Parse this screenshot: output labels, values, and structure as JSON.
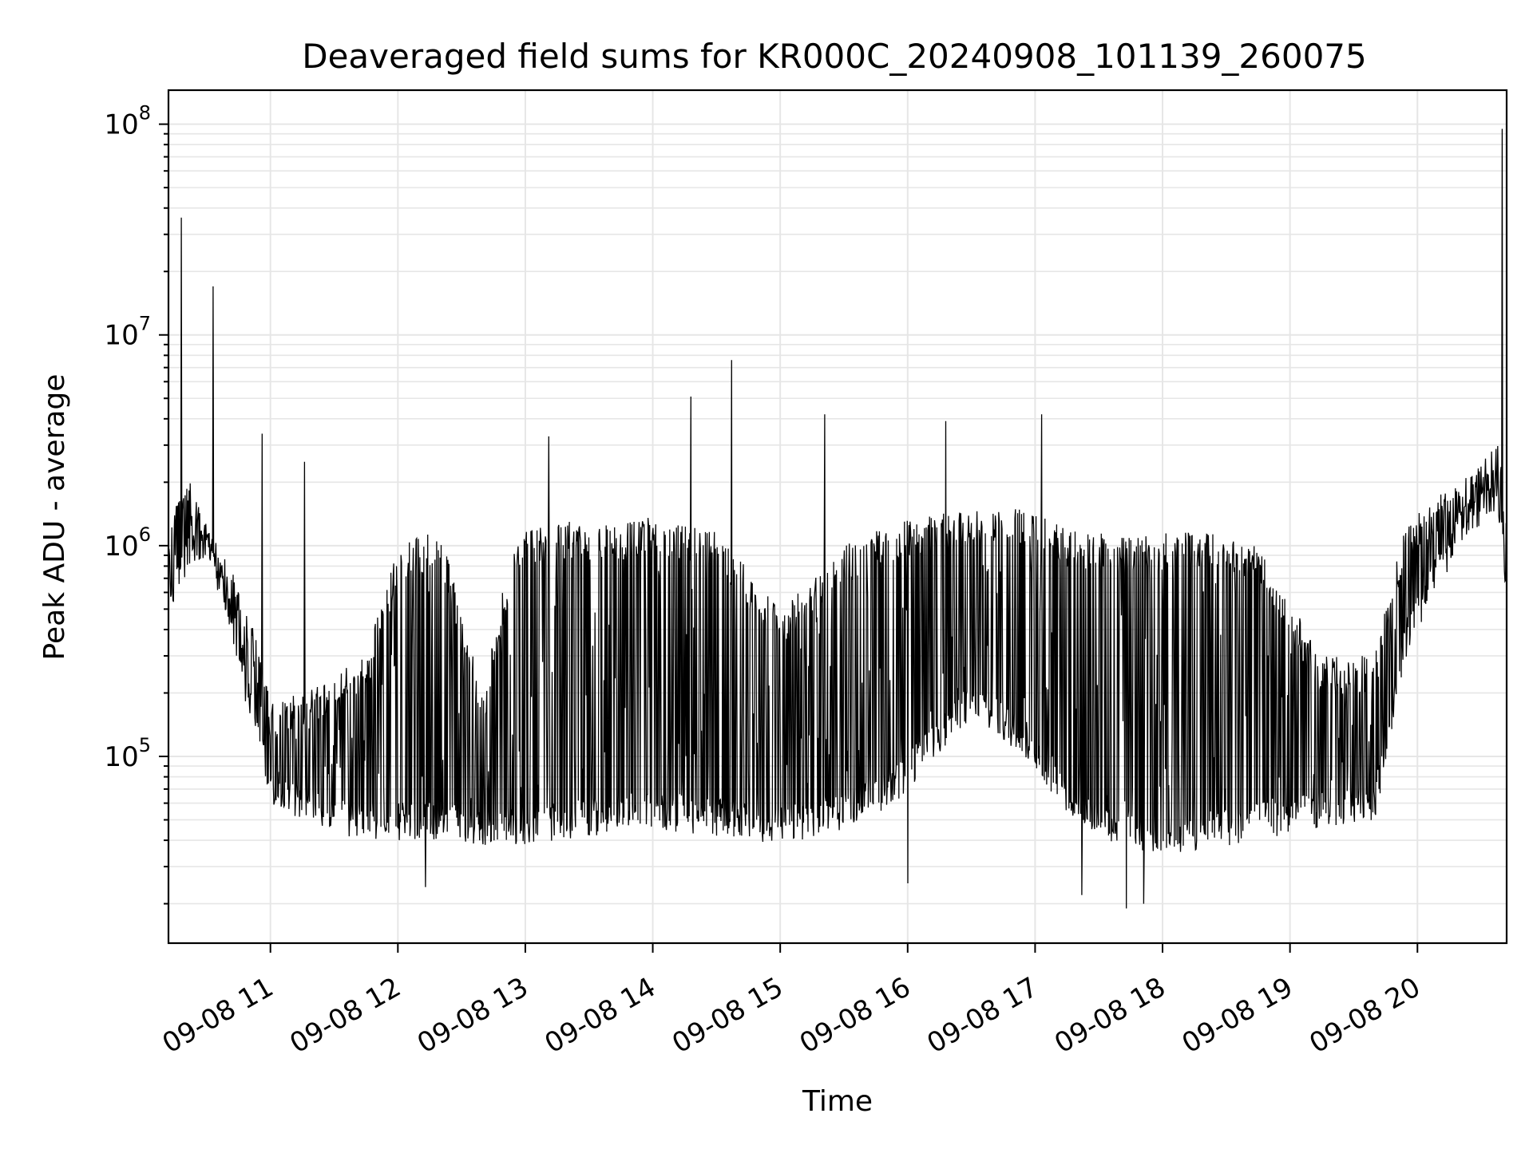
{
  "chart_data": {
    "type": "line",
    "title": "Deaveraged field sums for KR000C_20240908_101139_260075",
    "xlabel": "Time",
    "ylabel": "Peak ADU - average",
    "yscale": "log",
    "ylim": [
      13000,
      145000000
    ],
    "xlim": [
      "2024-09-08 10:12",
      "2024-09-08 20:42"
    ],
    "grid": true,
    "line_color": "#000000",
    "x_ticks": [
      {
        "value": "2024-09-08 11:00",
        "label": "09-08 11"
      },
      {
        "value": "2024-09-08 12:00",
        "label": "09-08 12"
      },
      {
        "value": "2024-09-08 13:00",
        "label": "09-08 13"
      },
      {
        "value": "2024-09-08 14:00",
        "label": "09-08 14"
      },
      {
        "value": "2024-09-08 15:00",
        "label": "09-08 15"
      },
      {
        "value": "2024-09-08 16:00",
        "label": "09-08 16"
      },
      {
        "value": "2024-09-08 17:00",
        "label": "09-08 17"
      },
      {
        "value": "2024-09-08 18:00",
        "label": "09-08 18"
      },
      {
        "value": "2024-09-08 19:00",
        "label": "09-08 19"
      },
      {
        "value": "2024-09-08 20:00",
        "label": "09-08 20"
      }
    ],
    "y_ticks": [
      {
        "value": 100000,
        "base": "10",
        "exp": "5"
      },
      {
        "value": 1000000,
        "base": "10",
        "exp": "6"
      },
      {
        "value": 10000000,
        "base": "10",
        "exp": "7"
      },
      {
        "value": 100000000,
        "base": "10",
        "exp": "8"
      }
    ],
    "series": [
      {
        "values": [
          {
            "t": "2024-09-08 10:12",
            "floor": 450000,
            "ceil": 1100000
          },
          {
            "t": "2024-09-08 10:20",
            "floor": 700000,
            "ceil": 2500000
          },
          {
            "t": "2024-09-08 10:30",
            "floor": 850000,
            "ceil": 1300000
          },
          {
            "t": "2024-09-08 10:40",
            "floor": 450000,
            "ceil": 900000
          },
          {
            "t": "2024-09-08 10:50",
            "floor": 150000,
            "ceil": 500000
          },
          {
            "t": "2024-09-08 11:00",
            "floor": 60000,
            "ceil": 180000
          },
          {
            "t": "2024-09-08 11:15",
            "floor": 50000,
            "ceil": 200000
          },
          {
            "t": "2024-09-08 11:30",
            "floor": 42000,
            "ceil": 250000
          },
          {
            "t": "2024-09-08 11:45",
            "floor": 38000,
            "ceil": 300000
          },
          {
            "t": "2024-09-08 12:00",
            "floor": 40000,
            "ceil": 1000000
          },
          {
            "t": "2024-09-08 12:20",
            "floor": 40000,
            "ceil": 1200000
          },
          {
            "t": "2024-09-08 12:40",
            "floor": 38000,
            "ceil": 200000
          },
          {
            "t": "2024-09-08 12:55",
            "floor": 38000,
            "ceil": 1200000
          },
          {
            "t": "2024-09-08 13:20",
            "floor": 40000,
            "ceil": 1300000
          },
          {
            "t": "2024-09-08 13:50",
            "floor": 45000,
            "ceil": 1300000
          },
          {
            "t": "2024-09-08 14:00",
            "floor": 45000,
            "ceil": 1400000
          },
          {
            "t": "2024-09-08 14:30",
            "floor": 42000,
            "ceil": 1200000
          },
          {
            "t": "2024-09-08 15:00",
            "floor": 38000,
            "ceil": 500000
          },
          {
            "t": "2024-09-08 15:30",
            "floor": 45000,
            "ceil": 1000000
          },
          {
            "t": "2024-09-08 15:55",
            "floor": 60000,
            "ceil": 1300000
          },
          {
            "t": "2024-09-08 16:30",
            "floor": 150000,
            "ceil": 1500000
          },
          {
            "t": "2024-09-08 16:55",
            "floor": 100000,
            "ceil": 1500000
          },
          {
            "t": "2024-09-08 17:15",
            "floor": 50000,
            "ceil": 1200000
          },
          {
            "t": "2024-09-08 17:45",
            "floor": 35000,
            "ceil": 1100000
          },
          {
            "t": "2024-09-08 18:15",
            "floor": 35000,
            "ceil": 1200000
          },
          {
            "t": "2024-09-08 18:45",
            "floor": 40000,
            "ceil": 1000000
          },
          {
            "t": "2024-09-08 19:15",
            "floor": 45000,
            "ceil": 300000
          },
          {
            "t": "2024-09-08 19:40",
            "floor": 50000,
            "ceil": 300000
          },
          {
            "t": "2024-09-08 19:55",
            "floor": 300000,
            "ceil": 1400000
          },
          {
            "t": "2024-09-08 20:20",
            "floor": 1000000,
            "ceil": 2000000
          },
          {
            "t": "2024-09-08 20:38",
            "floor": 1500000,
            "ceil": 3000000
          },
          {
            "t": "2024-09-08 20:42",
            "floor": 500000,
            "ceil": 1500000
          }
        ],
        "spikes": [
          {
            "t": "2024-09-08 10:18",
            "y": 36000000
          },
          {
            "t": "2024-09-08 10:33",
            "y": 17000000
          },
          {
            "t": "2024-09-08 10:56",
            "y": 3400000
          },
          {
            "t": "2024-09-08 11:16",
            "y": 2500000
          },
          {
            "t": "2024-09-08 13:11",
            "y": 3300000
          },
          {
            "t": "2024-09-08 14:18",
            "y": 5100000
          },
          {
            "t": "2024-09-08 14:37",
            "y": 7600000
          },
          {
            "t": "2024-09-08 15:21",
            "y": 4200000
          },
          {
            "t": "2024-09-08 16:18",
            "y": 3900000
          },
          {
            "t": "2024-09-08 17:03",
            "y": 4200000
          },
          {
            "t": "2024-09-08 20:40",
            "y": 95000000
          }
        ],
        "dips": [
          {
            "t": "2024-09-08 12:13",
            "y": 24000
          },
          {
            "t": "2024-09-08 16:00",
            "y": 25000
          },
          {
            "t": "2024-09-08 17:22",
            "y": 22000
          },
          {
            "t": "2024-09-08 17:43",
            "y": 19000
          },
          {
            "t": "2024-09-08 17:51",
            "y": 20000
          }
        ]
      }
    ]
  }
}
